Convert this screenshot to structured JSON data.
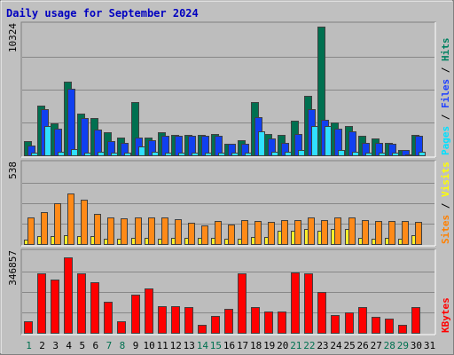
{
  "chart_data": {
    "type": "bar",
    "title": "Daily usage for September 2024",
    "categories": [
      "1",
      "2",
      "3",
      "4",
      "5",
      "6",
      "7",
      "8",
      "9",
      "10",
      "11",
      "12",
      "13",
      "14",
      "15",
      "16",
      "17",
      "18",
      "19",
      "20",
      "21",
      "22",
      "23",
      "24",
      "25",
      "26",
      "27",
      "28",
      "29",
      "30",
      "31"
    ],
    "weekend_categories": [
      "1",
      "7",
      "8",
      "14",
      "15",
      "21",
      "22",
      "28",
      "29"
    ],
    "panels": [
      {
        "id": "hits-files-pages",
        "ymax_label": "10324",
        "ylim": [
          0,
          10324
        ],
        "legend": [
          {
            "text": "Pages",
            "color": "#00e0ff"
          },
          {
            "text": " / ",
            "color": "#000000"
          },
          {
            "text": "Files",
            "color": "#2040ff"
          },
          {
            "text": " / ",
            "color": "#000000"
          },
          {
            "text": "Hits",
            "color": "#008060"
          }
        ],
        "series": [
          {
            "key": "hits",
            "color": "#007050",
            "values": [
              1100,
              3900,
              2500,
              5800,
              3300,
              2900,
              1800,
              1400,
              4200,
              1400,
              1800,
              1600,
              1600,
              1600,
              1700,
              900,
              1200,
              4200,
              1700,
              1600,
              2700,
              4700,
              10100,
              2600,
              2300,
              1500,
              1300,
              1000,
              400,
              1600,
              0
            ]
          },
          {
            "key": "files",
            "color": "#1040f0",
            "values": [
              800,
              3600,
              2100,
              5200,
              2900,
              2000,
              1100,
              1000,
              1400,
              1200,
              1500,
              1500,
              1500,
              1500,
              1500,
              900,
              900,
              3000,
              1300,
              1000,
              1700,
              3600,
              2800,
              2100,
              1900,
              1000,
              1000,
              900,
              400,
              1500,
              0
            ]
          },
          {
            "key": "pages",
            "color": "#30e0ff",
            "values": [
              200,
              2300,
              300,
              500,
              200,
              300,
              200,
              200,
              700,
              300,
              200,
              200,
              200,
              200,
              200,
              200,
              200,
              1900,
              300,
              300,
              400,
              2300,
              2300,
              400,
              300,
              200,
              200,
              200,
              100,
              300,
              0
            ]
          }
        ]
      },
      {
        "id": "visits-sites",
        "ymax_label": "538",
        "ylim": [
          0,
          538
        ],
        "legend": [
          {
            "text": "Sites",
            "color": "#ff8000"
          },
          {
            "text": " / ",
            "color": "#000000"
          },
          {
            "text": "Visits",
            "color": "#ffff00"
          }
        ],
        "series": [
          {
            "key": "visits",
            "color": "#ffef2a",
            "values": [
              30,
              50,
              55,
              60,
              55,
              50,
              35,
              35,
              40,
              40,
              35,
              40,
              40,
              40,
              40,
              35,
              35,
              45,
              45,
              90,
              90,
              100,
              90,
              100,
              100,
              40,
              35,
              40,
              35,
              60,
              0
            ]
          },
          {
            "key": "sites",
            "color": "#ff8a18",
            "values": [
              175,
              210,
              270,
              335,
              290,
              200,
              175,
              170,
              175,
              175,
              175,
              165,
              140,
              120,
              150,
              130,
              155,
              150,
              145,
              160,
              160,
              175,
              155,
              175,
              175,
              155,
              150,
              150,
              150,
              145,
              0
            ]
          }
        ]
      },
      {
        "id": "kbytes",
        "ymax_label": "346857",
        "ylim": [
          0,
          346857
        ],
        "legend": [
          {
            "text": "KBytes",
            "color": "#ff0000"
          }
        ],
        "series": [
          {
            "key": "kbytes",
            "color": "#ff0000",
            "values": [
              50000,
              252000,
              225000,
              322000,
              252000,
              215000,
              133000,
              50000,
              164000,
              190000,
              114000,
              114000,
              110000,
              35000,
              73000,
              100000,
              252000,
              110000,
              92000,
              92000,
              258000,
              252000,
              175000,
              75000,
              88000,
              108000,
              69000,
              61000,
              33000,
              108000,
              0
            ]
          }
        ]
      }
    ],
    "colors": {
      "title": "#0000c0",
      "background": "#c0c0c0",
      "plot_background": "#bdbdbd",
      "grid": "#888888",
      "axis_text_weekday": "#000000",
      "axis_text_weekend": "#007050"
    }
  }
}
